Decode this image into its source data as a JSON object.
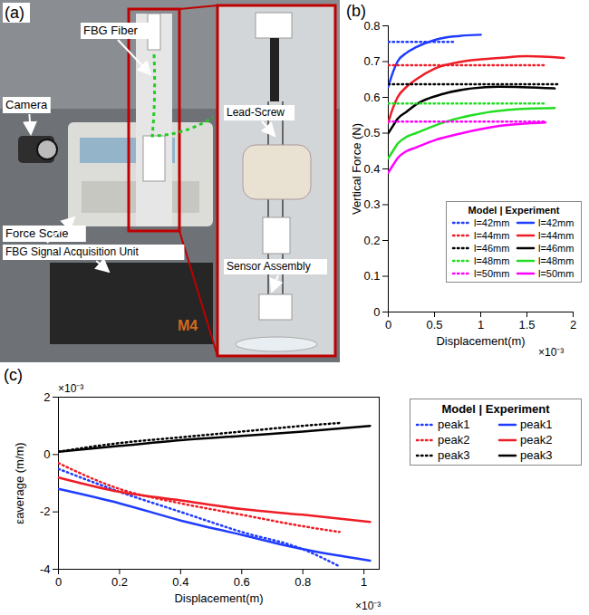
{
  "photo": {
    "letter": "(a)",
    "labels": [
      "FBG Fiber",
      "Camera",
      "Force Scale",
      "Lead-Screw",
      "FBG Signal Acquisition Unit",
      "Sensor Assembly"
    ],
    "device_text": "M4"
  },
  "chart_data": [
    {
      "type": "line",
      "panel": "(b)",
      "xlabel": "Displacement(m)",
      "x_multiplier": "×10⁻³",
      "ylabel": "Vertical Force (N)",
      "xlim": [
        0,
        2
      ],
      "xticks": [
        0,
        0.5,
        1,
        1.5,
        2
      ],
      "ylim": [
        0,
        0.8
      ],
      "yticks": [
        0,
        0.1,
        0.2,
        0.3,
        0.4,
        0.5,
        0.6,
        0.7,
        0.8
      ],
      "grid": false,
      "legend": "bottom-right",
      "legend_title": "Model | Experiment",
      "series": [
        {
          "name": "l=42mm",
          "color": "#1f3cff",
          "line_style": "dotted",
          "x": [
            0,
            0.7
          ],
          "values": [
            0.755,
            0.755
          ]
        },
        {
          "name": "l=42mm",
          "color": "#1f3cff",
          "line_style": "solid",
          "x": [
            0,
            0.05,
            0.1,
            0.2,
            0.3,
            0.5,
            0.7,
            1.0
          ],
          "values": [
            0.63,
            0.67,
            0.7,
            0.725,
            0.74,
            0.76,
            0.77,
            0.775
          ]
        },
        {
          "name": "l=44mm",
          "color": "#ee1c24",
          "line_style": "dotted",
          "x": [
            0,
            1.7
          ],
          "values": [
            0.69,
            0.69
          ]
        },
        {
          "name": "l=44mm",
          "color": "#ee1c24",
          "line_style": "solid",
          "x": [
            0,
            0.05,
            0.1,
            0.2,
            0.3,
            0.5,
            0.8,
            1.2,
            1.5,
            1.9
          ],
          "values": [
            0.53,
            0.57,
            0.6,
            0.63,
            0.65,
            0.68,
            0.7,
            0.71,
            0.715,
            0.71
          ]
        },
        {
          "name": "l=46mm",
          "color": "#000000",
          "line_style": "dotted",
          "x": [
            0,
            1.85
          ],
          "values": [
            0.637,
            0.637
          ]
        },
        {
          "name": "l=46mm",
          "color": "#000000",
          "line_style": "solid",
          "x": [
            0,
            0.05,
            0.1,
            0.2,
            0.3,
            0.6,
            0.9,
            1.2,
            1.8
          ],
          "values": [
            0.5,
            0.52,
            0.54,
            0.56,
            0.58,
            0.61,
            0.625,
            0.63,
            0.625
          ]
        },
        {
          "name": "l=48mm",
          "color": "#22dd22",
          "line_style": "dotted",
          "x": [
            0,
            1.7
          ],
          "values": [
            0.583,
            0.583
          ]
        },
        {
          "name": "l=48mm",
          "color": "#22dd22",
          "line_style": "solid",
          "x": [
            0,
            0.05,
            0.1,
            0.2,
            0.3,
            0.6,
            0.9,
            1.3,
            1.8
          ],
          "values": [
            0.43,
            0.45,
            0.47,
            0.49,
            0.5,
            0.53,
            0.55,
            0.565,
            0.57
          ]
        },
        {
          "name": "l=50mm",
          "color": "#ff00ff",
          "line_style": "dotted",
          "x": [
            0,
            1.7
          ],
          "values": [
            0.532,
            0.532
          ]
        },
        {
          "name": "l=50mm",
          "color": "#ff00ff",
          "line_style": "solid",
          "x": [
            0,
            0.05,
            0.1,
            0.2,
            0.3,
            0.5,
            0.8,
            1.2,
            1.7
          ],
          "values": [
            0.39,
            0.41,
            0.43,
            0.45,
            0.46,
            0.48,
            0.5,
            0.52,
            0.53
          ]
        }
      ]
    },
    {
      "type": "line",
      "panel": "(c)",
      "xlabel": "Displacement(m)",
      "x_multiplier": "×10⁻³",
      "ylabel": "εaverage (m/m)",
      "y_multiplier": "×10⁻³",
      "xlim": [
        0,
        1.05
      ],
      "xticks": [
        0,
        0.2,
        0.4,
        0.6,
        0.8,
        1
      ],
      "ylim": [
        -4,
        2
      ],
      "yticks": [
        -4,
        -2,
        0,
        2
      ],
      "grid": false,
      "legend": "right",
      "legend_title": "Model | Experiment",
      "series": [
        {
          "name": "peak1",
          "color": "#1f3cff",
          "line_style": "dotted",
          "x": [
            0,
            0.2,
            0.4,
            0.6,
            0.8,
            0.92
          ],
          "values": [
            -0.5,
            -1.3,
            -2.0,
            -2.7,
            -3.3,
            -3.9
          ]
        },
        {
          "name": "peak1",
          "color": "#1f3cff",
          "line_style": "solid",
          "x": [
            0,
            0.2,
            0.4,
            0.6,
            0.8,
            1.02
          ],
          "values": [
            -1.2,
            -1.7,
            -2.3,
            -2.8,
            -3.3,
            -3.7
          ]
        },
        {
          "name": "peak2",
          "color": "#ee1c24",
          "line_style": "dotted",
          "x": [
            0,
            0.2,
            0.4,
            0.6,
            0.8,
            0.92
          ],
          "values": [
            -0.3,
            -1.2,
            -1.7,
            -2.1,
            -2.5,
            -2.7
          ]
        },
        {
          "name": "peak2",
          "color": "#ee1c24",
          "line_style": "solid",
          "x": [
            0,
            0.2,
            0.4,
            0.6,
            0.8,
            1.02
          ],
          "values": [
            -0.8,
            -1.3,
            -1.6,
            -1.9,
            -2.1,
            -2.35
          ]
        },
        {
          "name": "peak3",
          "color": "#000000",
          "line_style": "dotted",
          "x": [
            0,
            0.2,
            0.4,
            0.6,
            0.8,
            0.92
          ],
          "values": [
            0.1,
            0.4,
            0.6,
            0.8,
            1.0,
            1.1
          ]
        },
        {
          "name": "peak3",
          "color": "#000000",
          "line_style": "solid",
          "x": [
            0,
            0.2,
            0.4,
            0.6,
            0.8,
            1.02
          ],
          "values": [
            0.1,
            0.3,
            0.5,
            0.65,
            0.8,
            1.0
          ]
        }
      ]
    }
  ]
}
